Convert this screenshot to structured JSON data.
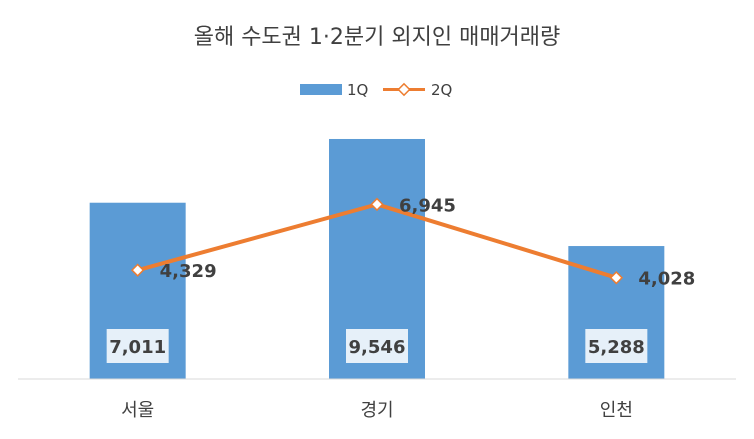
{
  "chart_data": {
    "type": "bar",
    "title": "올해 수도권 1·2분기 외지인 매매거래량",
    "categories": [
      "서울",
      "경기",
      "인천"
    ],
    "series": [
      {
        "name": "1Q",
        "kind": "bar",
        "values": [
          7011,
          9546,
          5288
        ],
        "color": "#5B9BD5"
      },
      {
        "name": "2Q",
        "kind": "line",
        "values": [
          4329,
          6945,
          4028
        ],
        "color": "#ED7D31"
      }
    ],
    "value_labels": {
      "1Q": [
        "7,011",
        "9,546",
        "5,288"
      ],
      "2Q": [
        "4,329",
        "6,945",
        "4,028"
      ]
    },
    "ylim": [
      0,
      10500
    ],
    "grid": false,
    "legend_position": "top"
  }
}
